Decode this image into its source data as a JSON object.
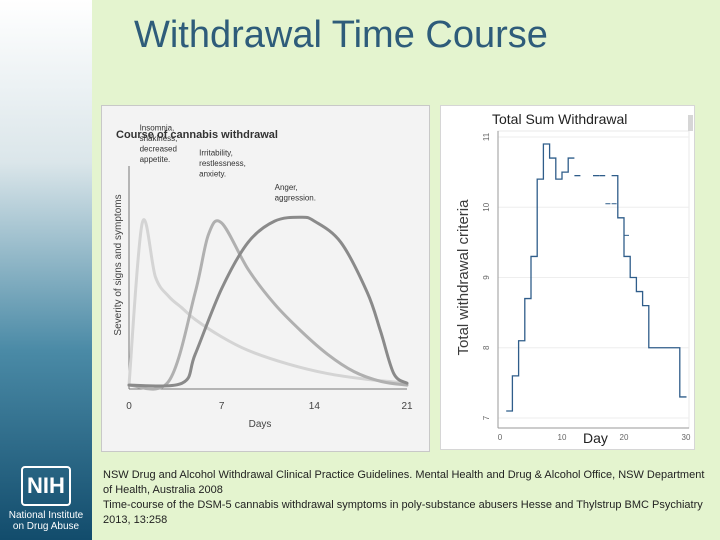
{
  "slide": {
    "title": "Withdrawal Time Course"
  },
  "logo": {
    "mark": "NIH",
    "name_line1": "National Institute",
    "name_line2": "on Drug Abuse"
  },
  "references": [
    "NSW Drug and Alcohol Withdrawal Clinical Practice Guidelines. Mental Health and Drug & Alcohol Office, NSW Department of Health, Australia 2008",
    "Time-course of the DSM-5 cannabis withdrawal symptoms in poly-substance abusers Hesse and Thylstrup BMC Psychiatry 2013, 13:258"
  ],
  "colors": {
    "background": "#e4f4cf",
    "title": "#2e5c7a",
    "step_line": "#2f5d8a",
    "curve_light": "#d4d4d4",
    "curve_mid": "#b0b0b0",
    "curve_dark": "#8a8a8a"
  },
  "chart_data": [
    {
      "type": "line",
      "title": "Course of cannabis withdrawal",
      "xlabel": "Days",
      "ylabel": "Severity of signs and symptoms",
      "xticks": [
        0,
        7,
        14,
        21
      ],
      "xlim": [
        0,
        21
      ],
      "ylim": [
        0,
        1
      ],
      "grid": false,
      "series": [
        {
          "x": [
            0,
            1,
            2,
            3,
            4,
            5,
            7,
            9,
            12,
            15,
            18,
            21
          ],
          "y": [
            0.02,
            0.86,
            0.58,
            0.48,
            0.42,
            0.36,
            0.27,
            0.2,
            0.13,
            0.08,
            0.05,
            0.03
          ]
        },
        {
          "x": [
            0,
            3,
            5,
            6,
            7,
            9,
            11,
            13,
            15,
            17,
            19,
            21
          ],
          "y": [
            0.02,
            0.04,
            0.5,
            0.8,
            0.86,
            0.62,
            0.44,
            0.3,
            0.18,
            0.09,
            0.04,
            0.02
          ]
        },
        {
          "x": [
            0,
            4,
            5,
            7,
            9,
            11,
            13,
            14,
            16,
            18,
            19,
            20,
            21
          ],
          "y": [
            0.02,
            0.03,
            0.18,
            0.52,
            0.76,
            0.87,
            0.89,
            0.87,
            0.76,
            0.5,
            0.3,
            0.08,
            0.03
          ]
        }
      ],
      "annotations": [
        {
          "lines": [
            "Insomnia,",
            "shakiness,",
            "decreased",
            "appetite."
          ],
          "x": 0.8,
          "y": 1.34
        },
        {
          "lines": [
            "Irritability,",
            "restlessness,",
            "anxiety."
          ],
          "x": 5.3,
          "y": 1.21
        },
        {
          "lines": [
            "Anger,",
            "aggression."
          ],
          "x": 11.0,
          "y": 1.03
        }
      ]
    },
    {
      "type": "line",
      "title": "Total Sum Withdrawal",
      "xlabel": "Day",
      "ylabel": "Total withdrawal criteria",
      "xticks": [
        0,
        10,
        20,
        30
      ],
      "yticks": [
        7,
        8,
        9,
        10,
        11
      ],
      "xlim": [
        0,
        30
      ],
      "ylim": [
        7,
        11
      ],
      "grid": true,
      "series": [
        {
          "step": true,
          "x": [
            1,
            2,
            3,
            4,
            5,
            6,
            7,
            8,
            9,
            10,
            11,
            12,
            13,
            14,
            15,
            16,
            17,
            18,
            19,
            20,
            21,
            22,
            23,
            24,
            25,
            26,
            27,
            28,
            29,
            30
          ],
          "y": [
            7.1,
            7.6,
            8.1,
            8.7,
            9.3,
            10.4,
            10.9,
            10.7,
            10.4,
            10.5,
            10.7,
            10.45,
            10.45,
            10.45,
            10.45,
            10.45,
            10.45,
            10.45,
            9.85,
            9.3,
            9.0,
            8.8,
            8.6,
            8.0,
            8.0,
            8.0,
            8.0,
            8.0,
            7.3,
            7.3
          ],
          "gaps": [
            12,
            13,
            14,
            15,
            16,
            17
          ]
        }
      ]
    }
  ]
}
